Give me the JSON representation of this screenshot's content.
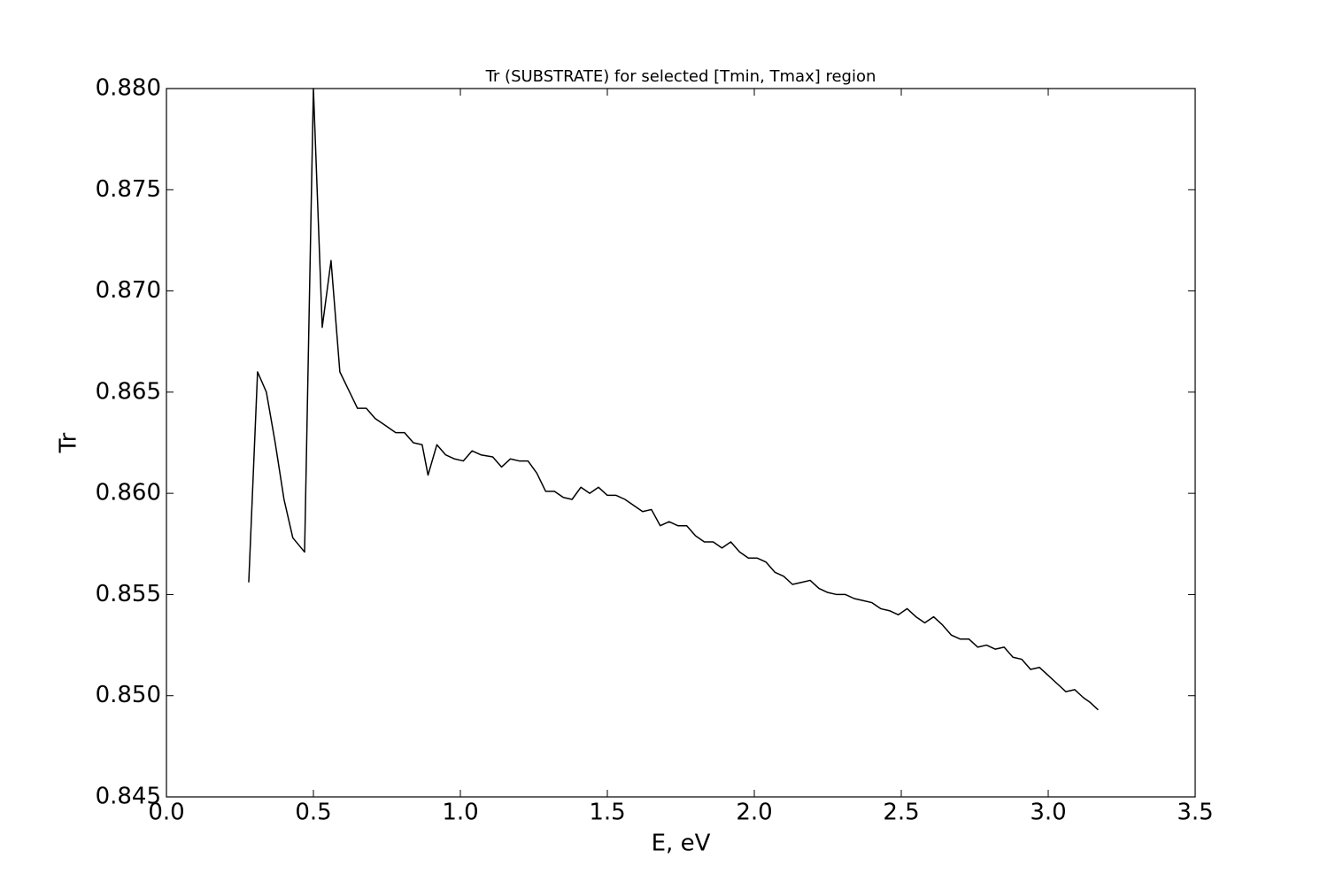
{
  "chart_data": {
    "type": "line",
    "title": "Tr (SUBSTRATE) for selected [Tmin, Tmax] region",
    "xlabel": "E, eV",
    "ylabel": "Tr",
    "color": "#000000",
    "x": [
      0.28,
      0.31,
      0.34,
      0.37,
      0.4,
      0.43,
      0.47,
      0.5,
      0.53,
      0.56,
      0.59,
      0.62,
      0.65,
      0.68,
      0.71,
      0.74,
      0.78,
      0.81,
      0.84,
      0.87,
      0.89,
      0.92,
      0.95,
      0.98,
      1.01,
      1.04,
      1.07,
      1.11,
      1.14,
      1.17,
      1.2,
      1.23,
      1.26,
      1.29,
      1.32,
      1.35,
      1.38,
      1.41,
      1.44,
      1.47,
      1.5,
      1.53,
      1.56,
      1.59,
      1.62,
      1.65,
      1.68,
      1.71,
      1.74,
      1.77,
      1.8,
      1.83,
      1.86,
      1.89,
      1.92,
      1.95,
      1.98,
      2.01,
      2.04,
      2.07,
      2.1,
      2.13,
      2.16,
      2.19,
      2.22,
      2.25,
      2.28,
      2.31,
      2.34,
      2.37,
      2.4,
      2.43,
      2.46,
      2.49,
      2.52,
      2.55,
      2.58,
      2.61,
      2.64,
      2.67,
      2.7,
      2.73,
      2.76,
      2.79,
      2.82,
      2.85,
      2.88,
      2.91,
      2.94,
      2.97,
      3.0,
      3.03,
      3.06,
      3.09,
      3.12,
      3.14,
      3.17
    ],
    "values": [
      0.8556,
      0.866,
      0.865,
      0.8625,
      0.8597,
      0.8578,
      0.8571,
      0.88,
      0.8682,
      0.8715,
      0.866,
      0.8651,
      0.8642,
      0.8642,
      0.8637,
      0.8634,
      0.863,
      0.863,
      0.8625,
      0.8624,
      0.8609,
      0.8624,
      0.8619,
      0.8617,
      0.8616,
      0.8621,
      0.8619,
      0.8618,
      0.8613,
      0.8617,
      0.8616,
      0.8616,
      0.861,
      0.8601,
      0.8601,
      0.8598,
      0.8597,
      0.8603,
      0.86,
      0.8603,
      0.8599,
      0.8599,
      0.8597,
      0.8594,
      0.8591,
      0.8592,
      0.8584,
      0.8586,
      0.8584,
      0.8584,
      0.8579,
      0.8576,
      0.8576,
      0.8573,
      0.8576,
      0.8571,
      0.8568,
      0.8568,
      0.8566,
      0.8561,
      0.8559,
      0.8555,
      0.8556,
      0.8557,
      0.8553,
      0.8551,
      0.855,
      0.855,
      0.8548,
      0.8547,
      0.8546,
      0.8543,
      0.8542,
      0.854,
      0.8543,
      0.8539,
      0.8536,
      0.8539,
      0.8535,
      0.853,
      0.8528,
      0.8528,
      0.8524,
      0.8525,
      0.8523,
      0.8524,
      0.8519,
      0.8518,
      0.8513,
      0.8514,
      0.851,
      0.8506,
      0.8502,
      0.8503,
      0.8499,
      0.8497,
      0.8493
    ],
    "xlim": [
      0,
      3.5
    ],
    "xticks": [
      {
        "value": 0,
        "label": "0.0"
      },
      0.5,
      {
        "value": 1,
        "label": "1.0"
      },
      1.5,
      {
        "value": 2,
        "label": "2.0"
      },
      2.5,
      {
        "value": 3,
        "label": "3.0"
      },
      3.5
    ],
    "ylim": [
      0.845,
      0.88
    ],
    "yticks": [
      0.845,
      {
        "value": 0.85,
        "label": "0.850"
      },
      0.855,
      {
        "value": 0.86,
        "label": "0.860"
      },
      0.865,
      {
        "value": 0.87,
        "label": "0.870"
      },
      0.875,
      {
        "value": 0.88,
        "label": "0.880"
      }
    ]
  }
}
